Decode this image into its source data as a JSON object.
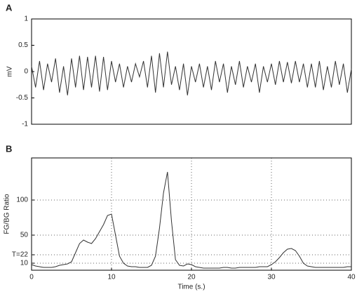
{
  "chart_data": [
    {
      "type": "line",
      "label": "A",
      "ylabel": "mV",
      "xlim": [
        0,
        40
      ],
      "ylim": [
        -1,
        1
      ],
      "yticks": [
        1,
        0.5,
        0,
        -0.5,
        -1
      ],
      "grid": false,
      "x": [
        0,
        0.5,
        1,
        1.5,
        2,
        2.5,
        3,
        3.5,
        4,
        4.5,
        5,
        5.5,
        6,
        6.5,
        7,
        7.5,
        8,
        8.5,
        9,
        9.5,
        10,
        10.5,
        11,
        11.5,
        12,
        12.5,
        13,
        13.5,
        14,
        14.5,
        15,
        15.5,
        16,
        16.5,
        17,
        17.5,
        18,
        18.5,
        19,
        19.5,
        20,
        20.5,
        21,
        21.5,
        22,
        22.5,
        23,
        23.5,
        24,
        24.5,
        25,
        25.5,
        26,
        26.5,
        27,
        27.5,
        28,
        28.5,
        29,
        29.5,
        30,
        30.5,
        31,
        31.5,
        32,
        32.5,
        33,
        33.5,
        34,
        34.5,
        35,
        35.5,
        36,
        36.5,
        37,
        37.5,
        38,
        38.5,
        39,
        39.5,
        40
      ],
      "series": [
        {
          "color": "#333333",
          "values": [
            0.1,
            -0.3,
            0.2,
            -0.35,
            0.15,
            -0.2,
            0.25,
            -0.4,
            0.1,
            -0.45,
            0.25,
            -0.3,
            0.3,
            -0.35,
            0.28,
            -0.3,
            0.3,
            -0.38,
            0.28,
            -0.35,
            0.2,
            -0.2,
            0.15,
            -0.3,
            0.1,
            -0.2,
            0.15,
            -0.1,
            0.2,
            -0.3,
            0.3,
            -0.4,
            0.35,
            -0.3,
            0.38,
            -0.25,
            0.1,
            -0.35,
            0.15,
            -0.45,
            0.1,
            -0.2,
            0.15,
            -0.3,
            0.1,
            -0.35,
            0.2,
            -0.2,
            0.15,
            -0.4,
            0.1,
            -0.25,
            0.2,
            -0.3,
            0.1,
            -0.2,
            0.15,
            -0.4,
            0.1,
            -0.2,
            0.15,
            -0.25,
            0.2,
            -0.2,
            0.18,
            -0.22,
            0.2,
            -0.2,
            0.15,
            -0.3,
            0.15,
            -0.3,
            0.2,
            -0.35,
            0.1,
            -0.3,
            0.2,
            -0.25,
            0.15,
            -0.4,
            0.05
          ]
        }
      ]
    },
    {
      "type": "line",
      "label": "B",
      "ylabel": "FG/BG Ratio",
      "xlabel": "Time (s.)",
      "xlim": [
        0,
        40
      ],
      "ylim": [
        0,
        160
      ],
      "xticks": [
        0,
        10,
        20,
        30,
        40
      ],
      "yticks": [
        10,
        {
          "value": 22,
          "label": "T=22"
        },
        50,
        100
      ],
      "grid": true,
      "x": [
        0,
        0.5,
        1,
        1.5,
        2,
        2.5,
        3,
        3.5,
        4,
        4.5,
        5,
        5.5,
        6,
        6.5,
        7,
        7.5,
        8,
        8.5,
        9,
        9.5,
        10,
        10.5,
        11,
        11.5,
        12,
        12.5,
        13,
        13.5,
        14,
        14.5,
        15,
        15.5,
        16,
        16.5,
        17,
        17.5,
        18,
        18.5,
        19,
        19.5,
        20,
        20.5,
        21,
        21.5,
        22,
        22.5,
        23,
        23.5,
        24,
        24.5,
        25,
        25.5,
        26,
        26.5,
        27,
        27.5,
        28,
        28.5,
        29,
        29.5,
        30,
        30.5,
        31,
        31.5,
        32,
        32.5,
        33,
        33.5,
        34,
        34.5,
        35,
        35.5,
        36,
        36.5,
        37,
        37.5,
        38,
        38.5,
        39,
        39.5,
        40
      ],
      "series": [
        {
          "color": "#333333",
          "values": [
            8,
            6,
            5,
            4,
            4,
            4,
            5,
            7,
            8,
            9,
            12,
            25,
            38,
            43,
            40,
            38,
            45,
            55,
            65,
            78,
            80,
            50,
            20,
            10,
            6,
            5,
            5,
            4,
            4,
            4,
            7,
            20,
            60,
            110,
            140,
            70,
            15,
            7,
            6,
            9,
            8,
            5,
            4,
            3,
            3,
            3,
            3,
            3,
            4,
            4,
            3,
            3,
            4,
            4,
            4,
            4,
            4,
            5,
            5,
            5,
            8,
            12,
            18,
            25,
            30,
            31,
            28,
            20,
            10,
            6,
            5,
            4,
            4,
            4,
            4,
            4,
            4,
            4,
            4,
            5,
            5
          ]
        }
      ]
    }
  ]
}
